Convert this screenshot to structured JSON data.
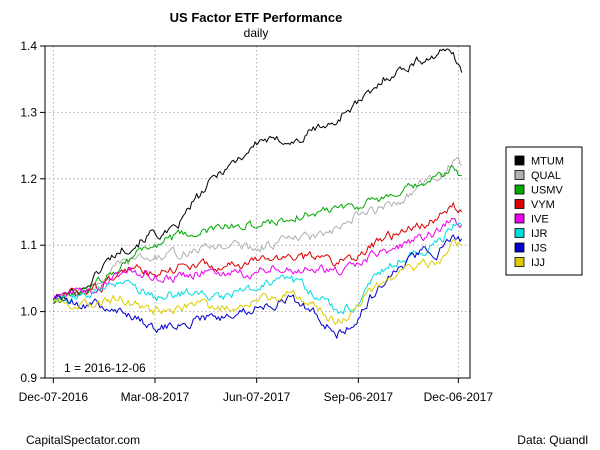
{
  "chart_data": {
    "type": "line",
    "title": "US Factor ETF Performance",
    "subtitle": "daily",
    "xlabel": "",
    "ylabel": "",
    "ylim": [
      0.9,
      1.4
    ],
    "yticks": [
      "0.9",
      "1.0",
      "1.1",
      "1.2",
      "1.3",
      "1.4"
    ],
    "xticks": [
      "Dec-07-2016",
      "Mar-08-2017",
      "Jun-07-2017",
      "Sep-06-2017",
      "Dec-06-2017"
    ],
    "grid": true,
    "legend_position": "right",
    "annotation": "1 =   2016-12-06",
    "footer_left": "CapitalSpectator.com",
    "footer_right": "Data: Quandl",
    "series": [
      {
        "name": "MTUM",
        "color": "#000000",
        "keys": [
          [
            0,
            1.015
          ],
          [
            6,
            1.02
          ],
          [
            12,
            1.03
          ],
          [
            18,
            1.035
          ],
          [
            24,
            1.05
          ],
          [
            30,
            1.07
          ],
          [
            36,
            1.085
          ],
          [
            42,
            1.095
          ],
          [
            48,
            1.1
          ],
          [
            54,
            1.11
          ],
          [
            60,
            1.12
          ],
          [
            66,
            1.115
          ],
          [
            72,
            1.12
          ],
          [
            78,
            1.14
          ],
          [
            84,
            1.165
          ],
          [
            90,
            1.18
          ],
          [
            96,
            1.2
          ],
          [
            102,
            1.215
          ],
          [
            108,
            1.225
          ],
          [
            114,
            1.235
          ],
          [
            120,
            1.25
          ],
          [
            126,
            1.26
          ],
          [
            132,
            1.255
          ],
          [
            138,
            1.26
          ],
          [
            144,
            1.255
          ],
          [
            150,
            1.26
          ],
          [
            156,
            1.275
          ],
          [
            162,
            1.28
          ],
          [
            168,
            1.28
          ],
          [
            174,
            1.3
          ],
          [
            180,
            1.31
          ],
          [
            186,
            1.32
          ],
          [
            192,
            1.33
          ],
          [
            198,
            1.35
          ],
          [
            204,
            1.36
          ],
          [
            210,
            1.365
          ],
          [
            216,
            1.375
          ],
          [
            222,
            1.38
          ],
          [
            228,
            1.385
          ],
          [
            234,
            1.39
          ],
          [
            240,
            1.395
          ],
          [
            245,
            1.36
          ]
        ]
      },
      {
        "name": "QUAL",
        "color": "#b0b0b0",
        "keys": [
          [
            0,
            1.02
          ],
          [
            10,
            1.025
          ],
          [
            20,
            1.03
          ],
          [
            30,
            1.05
          ],
          [
            40,
            1.07
          ],
          [
            50,
            1.08
          ],
          [
            60,
            1.08
          ],
          [
            70,
            1.085
          ],
          [
            80,
            1.09
          ],
          [
            90,
            1.095
          ],
          [
            100,
            1.1
          ],
          [
            110,
            1.1
          ],
          [
            120,
            1.095
          ],
          [
            130,
            1.1
          ],
          [
            140,
            1.11
          ],
          [
            150,
            1.11
          ],
          [
            160,
            1.115
          ],
          [
            170,
            1.12
          ],
          [
            180,
            1.14
          ],
          [
            190,
            1.15
          ],
          [
            200,
            1.16
          ],
          [
            210,
            1.17
          ],
          [
            220,
            1.19
          ],
          [
            230,
            1.2
          ],
          [
            240,
            1.225
          ],
          [
            245,
            1.22
          ]
        ]
      },
      {
        "name": "USMV",
        "color": "#00aa00",
        "keys": [
          [
            0,
            1.02
          ],
          [
            10,
            1.025
          ],
          [
            20,
            1.03
          ],
          [
            30,
            1.05
          ],
          [
            40,
            1.07
          ],
          [
            50,
            1.09
          ],
          [
            60,
            1.1
          ],
          [
            70,
            1.11
          ],
          [
            80,
            1.115
          ],
          [
            90,
            1.12
          ],
          [
            100,
            1.125
          ],
          [
            110,
            1.13
          ],
          [
            120,
            1.13
          ],
          [
            130,
            1.135
          ],
          [
            140,
            1.14
          ],
          [
            150,
            1.145
          ],
          [
            160,
            1.15
          ],
          [
            170,
            1.16
          ],
          [
            180,
            1.16
          ],
          [
            190,
            1.165
          ],
          [
            200,
            1.17
          ],
          [
            210,
            1.18
          ],
          [
            220,
            1.19
          ],
          [
            230,
            1.2
          ],
          [
            240,
            1.215
          ],
          [
            245,
            1.205
          ]
        ]
      },
      {
        "name": "VYM",
        "color": "#dd0000",
        "keys": [
          [
            0,
            1.02
          ],
          [
            10,
            1.025
          ],
          [
            20,
            1.03
          ],
          [
            30,
            1.04
          ],
          [
            40,
            1.06
          ],
          [
            50,
            1.065
          ],
          [
            60,
            1.06
          ],
          [
            70,
            1.065
          ],
          [
            80,
            1.07
          ],
          [
            90,
            1.07
          ],
          [
            100,
            1.065
          ],
          [
            110,
            1.07
          ],
          [
            120,
            1.075
          ],
          [
            130,
            1.08
          ],
          [
            140,
            1.085
          ],
          [
            150,
            1.08
          ],
          [
            160,
            1.085
          ],
          [
            170,
            1.075
          ],
          [
            180,
            1.08
          ],
          [
            190,
            1.1
          ],
          [
            200,
            1.11
          ],
          [
            210,
            1.12
          ],
          [
            220,
            1.13
          ],
          [
            230,
            1.14
          ],
          [
            240,
            1.16
          ],
          [
            245,
            1.15
          ]
        ]
      },
      {
        "name": "IVE",
        "color": "#ee00ee",
        "keys": [
          [
            0,
            1.02
          ],
          [
            10,
            1.025
          ],
          [
            20,
            1.03
          ],
          [
            30,
            1.04
          ],
          [
            40,
            1.055
          ],
          [
            50,
            1.06
          ],
          [
            60,
            1.055
          ],
          [
            70,
            1.05
          ],
          [
            80,
            1.055
          ],
          [
            90,
            1.06
          ],
          [
            100,
            1.055
          ],
          [
            110,
            1.055
          ],
          [
            120,
            1.06
          ],
          [
            130,
            1.065
          ],
          [
            140,
            1.07
          ],
          [
            150,
            1.06
          ],
          [
            160,
            1.065
          ],
          [
            170,
            1.06
          ],
          [
            180,
            1.065
          ],
          [
            190,
            1.085
          ],
          [
            200,
            1.09
          ],
          [
            210,
            1.1
          ],
          [
            220,
            1.11
          ],
          [
            230,
            1.12
          ],
          [
            240,
            1.14
          ],
          [
            245,
            1.13
          ]
        ]
      },
      {
        "name": "IJR",
        "color": "#00dddd",
        "keys": [
          [
            0,
            1.02
          ],
          [
            10,
            1.02
          ],
          [
            20,
            1.025
          ],
          [
            30,
            1.035
          ],
          [
            40,
            1.04
          ],
          [
            50,
            1.035
          ],
          [
            60,
            1.02
          ],
          [
            70,
            1.025
          ],
          [
            80,
            1.03
          ],
          [
            90,
            1.025
          ],
          [
            100,
            1.02
          ],
          [
            110,
            1.03
          ],
          [
            120,
            1.035
          ],
          [
            130,
            1.04
          ],
          [
            140,
            1.05
          ],
          [
            150,
            1.04
          ],
          [
            160,
            1.02
          ],
          [
            170,
            1.0
          ],
          [
            180,
            1.01
          ],
          [
            190,
            1.04
          ],
          [
            200,
            1.07
          ],
          [
            210,
            1.08
          ],
          [
            220,
            1.09
          ],
          [
            230,
            1.1
          ],
          [
            240,
            1.13
          ],
          [
            245,
            1.13
          ]
        ]
      },
      {
        "name": "IJS",
        "color": "#0000cc",
        "keys": [
          [
            0,
            1.02
          ],
          [
            10,
            1.015
          ],
          [
            20,
            1.01
          ],
          [
            30,
            1.01
          ],
          [
            40,
            1.0
          ],
          [
            50,
            0.99
          ],
          [
            60,
            0.975
          ],
          [
            70,
            0.98
          ],
          [
            80,
            0.985
          ],
          [
            90,
            0.99
          ],
          [
            100,
            0.99
          ],
          [
            110,
            1.0
          ],
          [
            120,
            1.005
          ],
          [
            130,
            1.01
          ],
          [
            140,
            1.02
          ],
          [
            150,
            1.01
          ],
          [
            160,
            0.99
          ],
          [
            170,
            0.965
          ],
          [
            180,
            0.98
          ],
          [
            190,
            1.02
          ],
          [
            200,
            1.05
          ],
          [
            210,
            1.07
          ],
          [
            220,
            1.09
          ],
          [
            230,
            1.09
          ],
          [
            240,
            1.12
          ],
          [
            245,
            1.11
          ]
        ]
      },
      {
        "name": "IJJ",
        "color": "#ddcc00",
        "keys": [
          [
            0,
            1.015
          ],
          [
            10,
            1.01
          ],
          [
            20,
            1.01
          ],
          [
            30,
            1.015
          ],
          [
            40,
            1.02
          ],
          [
            50,
            1.01
          ],
          [
            60,
            1.0
          ],
          [
            70,
            1.0
          ],
          [
            80,
            1.005
          ],
          [
            90,
            1.01
          ],
          [
            100,
            1.005
          ],
          [
            110,
            1.01
          ],
          [
            120,
            1.015
          ],
          [
            130,
            1.02
          ],
          [
            140,
            1.03
          ],
          [
            150,
            1.02
          ],
          [
            160,
            1.005
          ],
          [
            170,
            0.985
          ],
          [
            180,
            1.0
          ],
          [
            190,
            1.03
          ],
          [
            200,
            1.05
          ],
          [
            210,
            1.06
          ],
          [
            220,
            1.07
          ],
          [
            230,
            1.075
          ],
          [
            240,
            1.1
          ],
          [
            245,
            1.1
          ]
        ]
      }
    ]
  }
}
